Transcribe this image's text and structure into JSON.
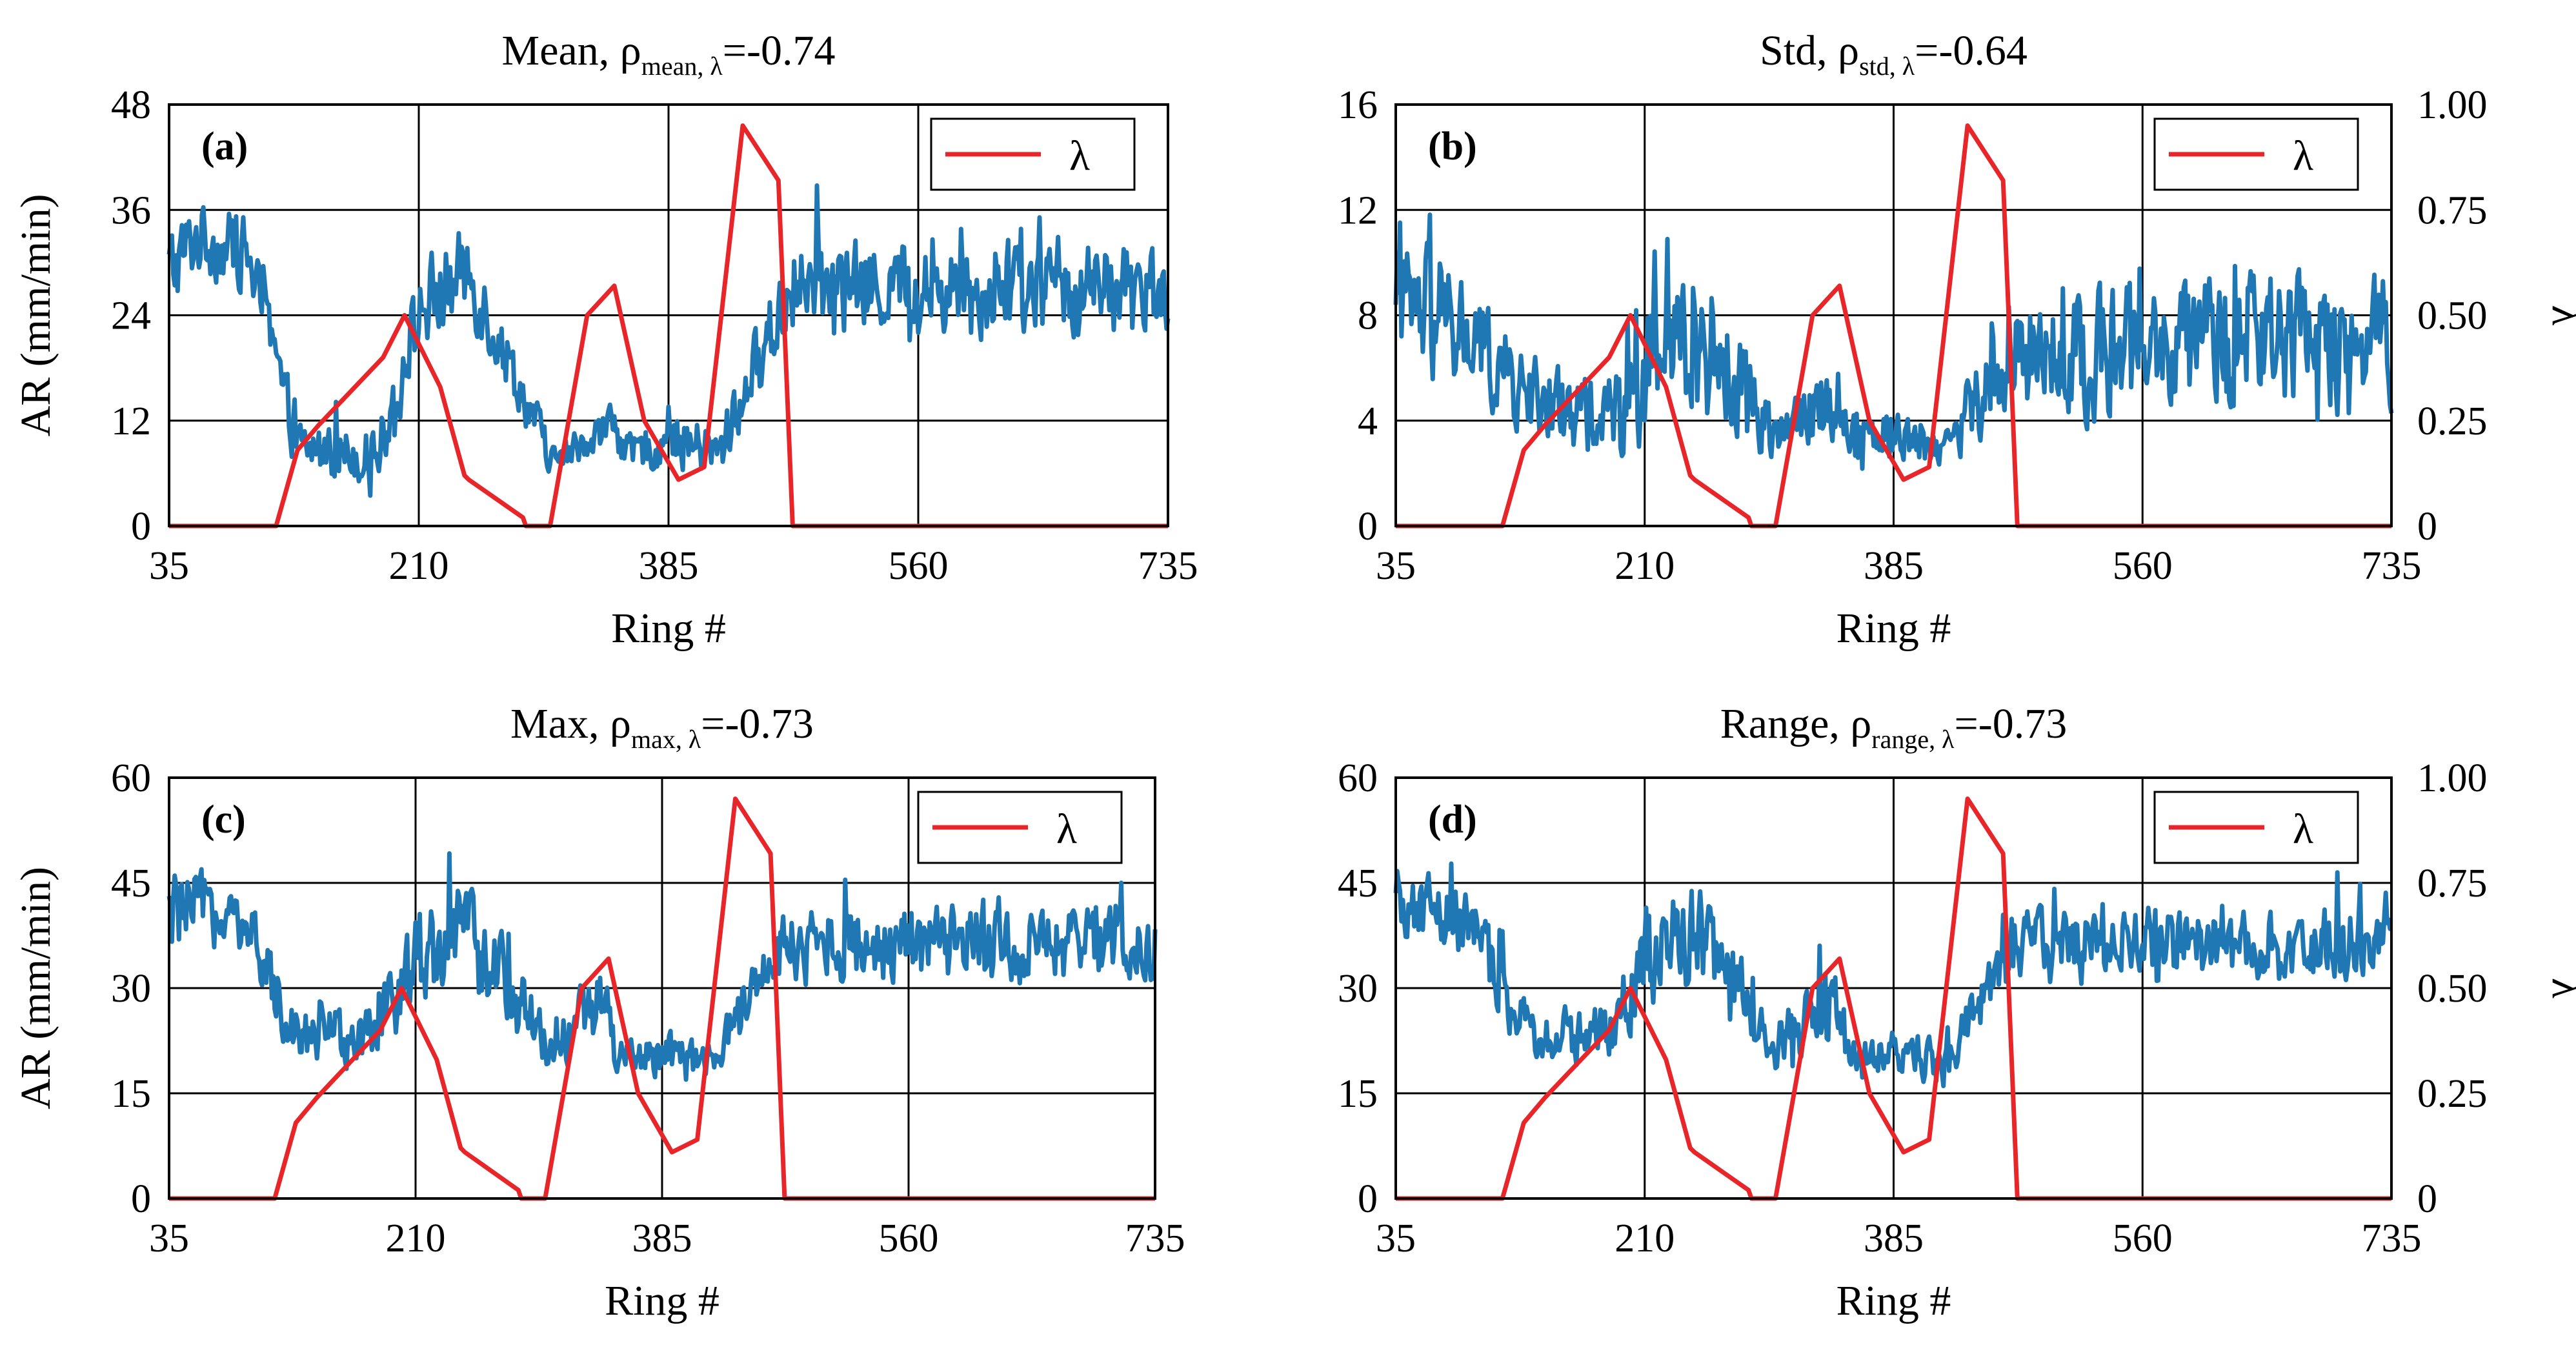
{
  "figure_caption": "",
  "chart_data": [
    {
      "type": "line",
      "panel_label": "(a)",
      "title_prefix": "Mean, ρ",
      "title_subscript": "mean, λ",
      "title_suffix": "=-0.74",
      "xlabel": "Ring #",
      "ylabel": "AR (mm/min)",
      "y2label": "",
      "xlim": [
        35,
        735
      ],
      "ylim": [
        0,
        48
      ],
      "y2lim": [
        0,
        1
      ],
      "xticks": [
        "35",
        "210",
        "385",
        "560",
        "735"
      ],
      "yticks": [
        "0",
        "12",
        "24",
        "36",
        "48"
      ],
      "y2ticks": [],
      "grid": true,
      "legend": {
        "label": "λ",
        "placement": "top-right"
      },
      "series": [
        {
          "name": "AR",
          "color": "#1f77b4",
          "axis": "left",
          "profile": "mean"
        },
        {
          "name": "λ",
          "color": "#e8262a",
          "axis": "right",
          "x": [
            35,
            110,
            125,
            140,
            185,
            200,
            225,
            242,
            245,
            283,
            285,
            302,
            328,
            347,
            368,
            392,
            410,
            437,
            462,
            472,
            735
          ],
          "values": [
            0,
            0,
            0.18,
            0.24,
            0.4,
            0.5,
            0.33,
            0.12,
            0.11,
            0.02,
            0,
            0,
            0.5,
            0.57,
            0.25,
            0.11,
            0.14,
            0.95,
            0.82,
            0,
            0
          ]
        }
      ]
    },
    {
      "type": "line",
      "panel_label": "(b)",
      "title_prefix": "Std, ρ",
      "title_subscript": "std, λ",
      "title_suffix": "=-0.64",
      "xlabel": "Ring #",
      "ylabel": "",
      "y2label": "λ",
      "xlim": [
        35,
        735
      ],
      "ylim": [
        0,
        16
      ],
      "y2lim": [
        0,
        1
      ],
      "xticks": [
        "35",
        "210",
        "385",
        "560",
        "735"
      ],
      "yticks": [
        "0",
        "4",
        "8",
        "12",
        "16"
      ],
      "y2ticks": [
        "0",
        "0.25",
        "0.50",
        "0.75",
        "1.00"
      ],
      "grid": true,
      "legend": {
        "label": "λ",
        "placement": "top-right"
      },
      "series": [
        {
          "name": "AR",
          "color": "#1f77b4",
          "axis": "left",
          "profile": "std"
        },
        {
          "name": "λ",
          "color": "#e8262a",
          "axis": "right",
          "x": [
            35,
            110,
            125,
            140,
            185,
            200,
            225,
            242,
            245,
            283,
            285,
            302,
            328,
            347,
            368,
            392,
            410,
            437,
            462,
            472,
            735
          ],
          "values": [
            0,
            0,
            0.18,
            0.24,
            0.4,
            0.5,
            0.33,
            0.12,
            0.11,
            0.02,
            0,
            0,
            0.5,
            0.57,
            0.25,
            0.11,
            0.14,
            0.95,
            0.82,
            0,
            0
          ]
        }
      ]
    },
    {
      "type": "line",
      "panel_label": "(c)",
      "title_prefix": "Max, ρ",
      "title_subscript": "max, λ",
      "title_suffix": "=-0.73",
      "xlabel": "Ring #",
      "ylabel": "AR (mm/min)",
      "y2label": "",
      "xlim": [
        35,
        735
      ],
      "ylim": [
        0,
        60
      ],
      "y2lim": [
        0,
        1
      ],
      "xticks": [
        "35",
        "210",
        "385",
        "560",
        "735"
      ],
      "yticks": [
        "0",
        "15",
        "30",
        "45",
        "60"
      ],
      "y2ticks": [],
      "grid": true,
      "legend": {
        "label": "λ",
        "placement": "top-right"
      },
      "series": [
        {
          "name": "AR",
          "color": "#1f77b4",
          "axis": "left",
          "profile": "max"
        },
        {
          "name": "λ",
          "color": "#e8262a",
          "axis": "right",
          "x": [
            35,
            110,
            125,
            140,
            185,
            200,
            225,
            242,
            245,
            283,
            285,
            302,
            328,
            347,
            368,
            392,
            410,
            437,
            462,
            472,
            735
          ],
          "values": [
            0,
            0,
            0.18,
            0.24,
            0.4,
            0.5,
            0.33,
            0.12,
            0.11,
            0.02,
            0,
            0,
            0.5,
            0.57,
            0.25,
            0.11,
            0.14,
            0.95,
            0.82,
            0,
            0
          ]
        }
      ]
    },
    {
      "type": "line",
      "panel_label": "(d)",
      "title_prefix": "Range, ρ",
      "title_subscript": "range, λ",
      "title_suffix": "=-0.73",
      "xlabel": "Ring #",
      "ylabel": "",
      "y2label": "λ",
      "xlim": [
        35,
        735
      ],
      "ylim": [
        0,
        60
      ],
      "y2lim": [
        0,
        1
      ],
      "xticks": [
        "35",
        "210",
        "385",
        "560",
        "735"
      ],
      "yticks": [
        "0",
        "15",
        "30",
        "45",
        "60"
      ],
      "y2ticks": [
        "0",
        "0.25",
        "0.50",
        "0.75",
        "1.00"
      ],
      "grid": true,
      "legend": {
        "label": "λ",
        "placement": "top-right"
      },
      "series": [
        {
          "name": "AR",
          "color": "#1f77b4",
          "axis": "left",
          "profile": "range"
        },
        {
          "name": "λ",
          "color": "#e8262a",
          "axis": "right",
          "x": [
            35,
            110,
            125,
            140,
            185,
            200,
            225,
            242,
            245,
            283,
            285,
            302,
            328,
            347,
            368,
            392,
            410,
            437,
            462,
            472,
            735
          ],
          "values": [
            0,
            0,
            0.18,
            0.24,
            0.4,
            0.5,
            0.33,
            0.12,
            0.11,
            0.02,
            0,
            0,
            0.5,
            0.57,
            0.25,
            0.11,
            0.14,
            0.95,
            0.82,
            0,
            0
          ]
        }
      ]
    }
  ],
  "ar_profiles": {
    "segments_x": [
      35,
      55,
      90,
      125,
      180,
      213,
      245,
      305,
      345,
      355,
      390,
      420,
      470,
      478,
      735
    ],
    "mean": {
      "levels": [
        29,
        33,
        31,
        9,
        8,
        25,
        29,
        7,
        12,
        8,
        10,
        8,
        27,
        27,
        27
      ],
      "noise": [
        5,
        4,
        4,
        3,
        3,
        5,
        5,
        2,
        2,
        2,
        3,
        3,
        5,
        5,
        5
      ]
    },
    "std": {
      "levels": [
        8,
        8,
        7,
        5,
        4,
        6,
        7.5,
        3.5,
        5,
        3.5,
        3.5,
        3,
        6.5,
        6.5,
        7
      ],
      "noise": [
        2.5,
        2.5,
        2,
        1.5,
        1.5,
        2.5,
        3,
        1,
        1.5,
        1,
        1,
        0.8,
        2.2,
        2.2,
        2.5
      ]
    },
    "max": {
      "levels": [
        40,
        42,
        38,
        24,
        23,
        35,
        38,
        22,
        28,
        19,
        21,
        19,
        36,
        36,
        36
      ],
      "noise": [
        6,
        5,
        5,
        4,
        4,
        7,
        7,
        4,
        5,
        3,
        3,
        3,
        5,
        5,
        5
      ]
    },
    "range": {
      "levels": [
        40,
        42,
        38,
        24,
        23,
        35,
        38,
        22,
        28,
        19,
        21,
        19,
        36,
        36,
        36
      ],
      "noise": [
        6,
        5,
        5,
        4,
        4,
        7,
        7,
        4,
        5,
        3,
        3,
        3,
        5,
        5,
        5
      ]
    }
  }
}
